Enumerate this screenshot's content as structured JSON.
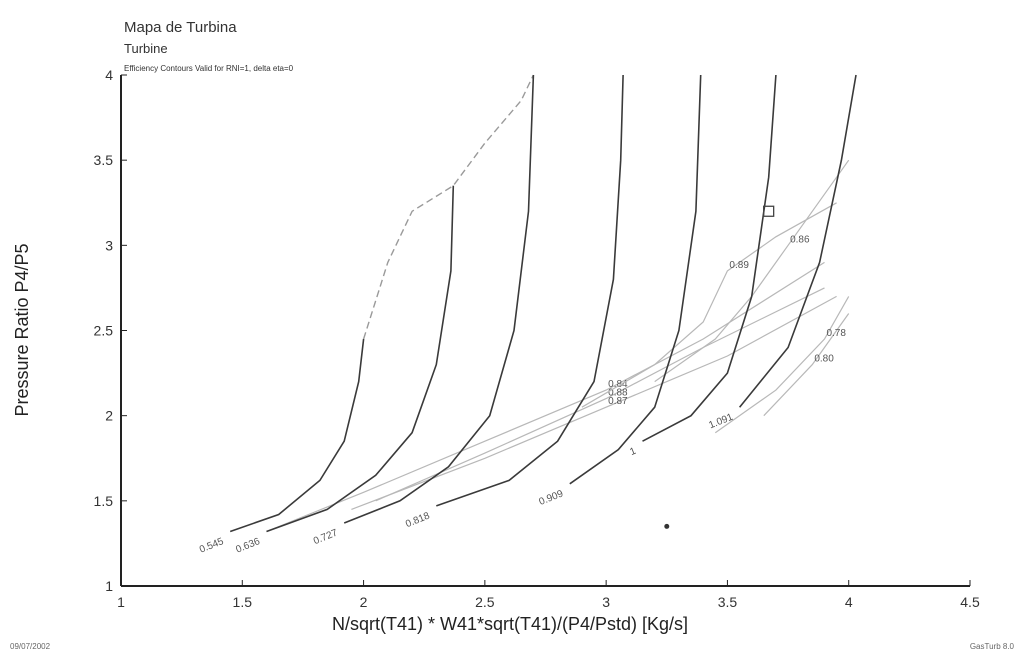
{
  "chart_data": {
    "type": "line",
    "title": "Mapa de Turbina",
    "subtitle": "Turbine",
    "note": "Efficiency Contours Valid for RNI=1, delta eta=0",
    "xlabel": "N/sqrt(T41) * W41*sqrt(T41)/(P4/Pstd) [Kg/s]",
    "ylabel": "Pressure Ratio P4/P5",
    "xlim": [
      1,
      4.5
    ],
    "ylim": [
      1,
      4
    ],
    "x_ticks": [
      "1",
      "1.5",
      "2",
      "2.5",
      "3",
      "3.5",
      "4",
      "4.5"
    ],
    "y_ticks": [
      "1",
      "1.5",
      "2",
      "2.5",
      "3",
      "3.5",
      "4"
    ],
    "grid": false,
    "speed_lines": [
      {
        "name": "0.545",
        "points": [
          [
            1.45,
            1.32
          ],
          [
            1.65,
            1.42
          ],
          [
            1.82,
            1.62
          ],
          [
            1.92,
            1.85
          ],
          [
            1.98,
            2.2
          ],
          [
            2.0,
            2.45
          ]
        ]
      },
      {
        "name": "0.636",
        "points": [
          [
            1.6,
            1.32
          ],
          [
            1.85,
            1.45
          ],
          [
            2.05,
            1.65
          ],
          [
            2.2,
            1.9
          ],
          [
            2.3,
            2.3
          ],
          [
            2.36,
            2.85
          ],
          [
            2.37,
            3.35
          ]
        ]
      },
      {
        "name": "0.727",
        "points": [
          [
            1.92,
            1.37
          ],
          [
            2.15,
            1.5
          ],
          [
            2.35,
            1.7
          ],
          [
            2.52,
            2.0
          ],
          [
            2.62,
            2.5
          ],
          [
            2.68,
            3.2
          ],
          [
            2.7,
            4.0
          ]
        ]
      },
      {
        "name": "0.818",
        "points": [
          [
            2.3,
            1.47
          ],
          [
            2.6,
            1.62
          ],
          [
            2.8,
            1.85
          ],
          [
            2.95,
            2.2
          ],
          [
            3.03,
            2.8
          ],
          [
            3.06,
            3.5
          ],
          [
            3.07,
            4.0
          ]
        ]
      },
      {
        "name": "0.909",
        "points": [
          [
            2.85,
            1.6
          ],
          [
            3.05,
            1.8
          ],
          [
            3.2,
            2.05
          ],
          [
            3.3,
            2.5
          ],
          [
            3.37,
            3.2
          ],
          [
            3.39,
            4.0
          ]
        ]
      },
      {
        "name": "1",
        "points": [
          [
            3.15,
            1.85
          ],
          [
            3.35,
            2.0
          ],
          [
            3.5,
            2.25
          ],
          [
            3.6,
            2.7
          ],
          [
            3.67,
            3.4
          ],
          [
            3.7,
            4.0
          ]
        ]
      },
      {
        "name": "1.091",
        "points": [
          [
            3.55,
            2.05
          ],
          [
            3.75,
            2.4
          ],
          [
            3.88,
            2.9
          ],
          [
            3.97,
            3.5
          ],
          [
            4.03,
            4.0
          ]
        ]
      }
    ],
    "surge_line": [
      [
        2.0,
        2.45
      ],
      [
        2.1,
        2.9
      ],
      [
        2.2,
        3.2
      ],
      [
        2.37,
        3.35
      ],
      [
        2.5,
        3.6
      ],
      [
        2.65,
        3.85
      ],
      [
        2.7,
        4.0
      ]
    ],
    "efficiency_contours": [
      {
        "label": "0.84",
        "points": [
          [
            1.6,
            1.32
          ],
          [
            2.0,
            1.55
          ],
          [
            2.5,
            1.85
          ],
          [
            3.0,
            2.15
          ],
          [
            3.4,
            2.45
          ],
          [
            3.9,
            2.9
          ]
        ]
      },
      {
        "label": "0.87",
        "points": [
          [
            1.95,
            1.45
          ],
          [
            2.5,
            1.75
          ],
          [
            3.0,
            2.05
          ],
          [
            3.5,
            2.35
          ],
          [
            3.95,
            2.7
          ]
        ]
      },
      {
        "label": "0.88",
        "points": [
          [
            2.05,
            1.5
          ],
          [
            2.5,
            1.78
          ],
          [
            3.0,
            2.1
          ],
          [
            3.4,
            2.4
          ],
          [
            3.9,
            2.75
          ]
        ]
      },
      {
        "label": "0.89",
        "points": [
          [
            2.9,
            2.05
          ],
          [
            3.2,
            2.3
          ],
          [
            3.4,
            2.55
          ],
          [
            3.5,
            2.85
          ],
          [
            3.7,
            3.05
          ],
          [
            3.95,
            3.25
          ]
        ]
      },
      {
        "label": "0.86",
        "points": [
          [
            3.2,
            2.2
          ],
          [
            3.45,
            2.45
          ],
          [
            3.6,
            2.7
          ],
          [
            3.75,
            3.0
          ],
          [
            3.9,
            3.3
          ],
          [
            4.0,
            3.5
          ]
        ]
      },
      {
        "label": "0.80",
        "points": [
          [
            3.65,
            2.0
          ],
          [
            3.85,
            2.3
          ],
          [
            4.0,
            2.6
          ]
        ]
      },
      {
        "label": "0.78",
        "points": [
          [
            3.45,
            1.9
          ],
          [
            3.7,
            2.15
          ],
          [
            3.9,
            2.45
          ],
          [
            4.0,
            2.7
          ]
        ]
      }
    ],
    "contour_label_texts": [
      "0.84",
      "0.87",
      "0.88",
      "0.89",
      "0.86",
      "0.80",
      "0.78"
    ],
    "operating_point": {
      "x": 3.67,
      "y": 3.2
    },
    "stray_mark": {
      "x": 3.25,
      "y": 1.35
    }
  },
  "footer": {
    "date": "09/07/2002",
    "software": "GasTurb 8.0"
  }
}
